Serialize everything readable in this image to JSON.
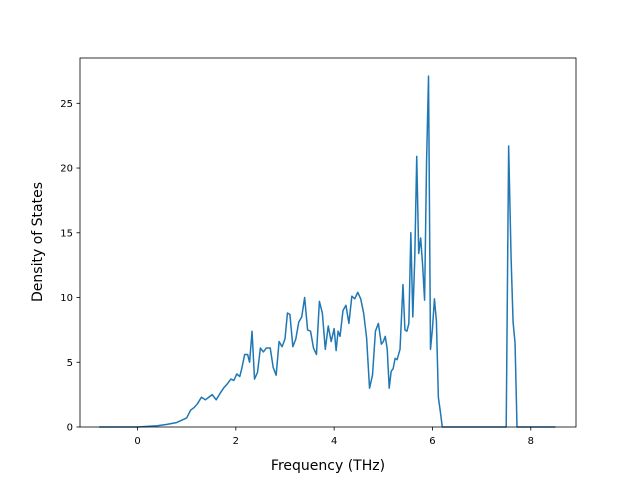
{
  "chart_data": {
    "type": "line",
    "title": "",
    "xlabel": "Frequency (THz)",
    "ylabel": "Density of States",
    "xlim": [
      -1.17,
      8.92
    ],
    "ylim": [
      0,
      28.5
    ],
    "xticks": [
      0,
      2,
      4,
      6,
      8
    ],
    "yticks": [
      0,
      5,
      10,
      15,
      20,
      25
    ],
    "grid": false,
    "legend": "none",
    "series": [
      {
        "color": "#1f77b4",
        "x": [
          -0.78,
          -0.5,
          -0.25,
          0.0,
          0.2,
          0.4,
          0.6,
          0.8,
          1.0,
          1.08,
          1.15,
          1.22,
          1.3,
          1.38,
          1.45,
          1.52,
          1.6,
          1.68,
          1.75,
          1.82,
          1.9,
          1.96,
          2.02,
          2.08,
          2.12,
          2.18,
          2.24,
          2.28,
          2.33,
          2.38,
          2.44,
          2.5,
          2.56,
          2.62,
          2.7,
          2.76,
          2.82,
          2.88,
          2.94,
          3.0,
          3.05,
          3.1,
          3.16,
          3.22,
          3.28,
          3.34,
          3.4,
          3.46,
          3.52,
          3.58,
          3.64,
          3.7,
          3.76,
          3.82,
          3.88,
          3.94,
          4.0,
          4.04,
          4.08,
          4.12,
          4.18,
          4.24,
          4.3,
          4.36,
          4.42,
          4.48,
          4.54,
          4.6,
          4.66,
          4.72,
          4.78,
          4.84,
          4.9,
          4.96,
          5.0,
          5.04,
          5.08,
          5.12,
          5.16,
          5.2,
          5.24,
          5.28,
          5.34,
          5.4,
          5.44,
          5.48,
          5.52,
          5.56,
          5.6,
          5.64,
          5.68,
          5.72,
          5.76,
          5.8,
          5.84,
          5.88,
          5.92,
          5.96,
          6.0,
          6.04,
          6.08,
          6.12,
          6.16,
          6.2,
          6.24,
          6.28,
          6.34,
          6.4,
          6.5,
          7.0,
          7.5,
          7.55,
          7.6,
          7.64,
          7.68,
          7.72,
          7.76,
          7.8,
          8.0,
          8.5
        ],
        "y": [
          0.0,
          0.0,
          0.0,
          0.0,
          0.05,
          0.1,
          0.2,
          0.35,
          0.7,
          1.3,
          1.5,
          1.8,
          2.3,
          2.1,
          2.3,
          2.5,
          2.1,
          2.6,
          3.0,
          3.3,
          3.7,
          3.6,
          4.1,
          3.9,
          4.5,
          5.6,
          5.6,
          5.0,
          7.4,
          3.7,
          4.2,
          6.1,
          5.8,
          6.1,
          6.1,
          4.6,
          4.0,
          6.6,
          6.2,
          6.8,
          8.8,
          8.7,
          6.2,
          6.8,
          8.1,
          8.5,
          10.0,
          7.5,
          7.4,
          6.1,
          5.6,
          9.7,
          8.8,
          6.0,
          7.8,
          6.6,
          7.6,
          5.9,
          7.4,
          7.0,
          9.0,
          9.4,
          8.0,
          10.1,
          9.9,
          10.4,
          9.9,
          8.8,
          6.9,
          3.0,
          4.0,
          7.4,
          8.0,
          6.4,
          6.6,
          7.0,
          6.0,
          3.0,
          4.3,
          4.5,
          5.3,
          5.2,
          6.0,
          11.0,
          7.5,
          7.4,
          8.0,
          15.0,
          8.5,
          13.0,
          20.9,
          13.4,
          14.6,
          12.5,
          9.8,
          20.5,
          27.1,
          6.0,
          7.6,
          9.9,
          8.2,
          2.3,
          1.2,
          0.0,
          0.0,
          0.0,
          0.0,
          0.0,
          0.0,
          0.0,
          0.0,
          21.7,
          13.0,
          8.1,
          6.5,
          0.0,
          0.0,
          0.0,
          0.0,
          0.0
        ]
      }
    ]
  }
}
